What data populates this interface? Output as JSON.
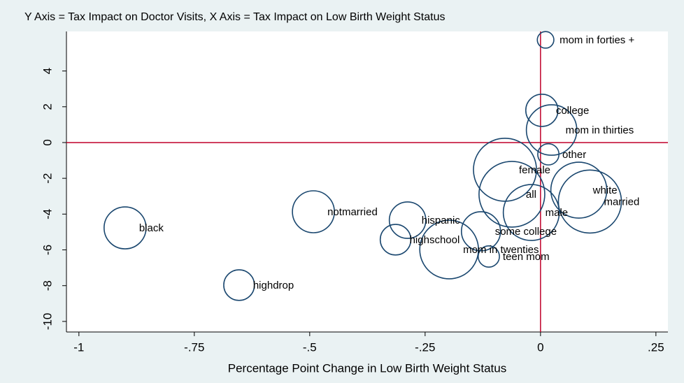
{
  "chart_data": {
    "type": "scatter",
    "title": "Y Axis = Tax Impact on Doctor Visits, X Axis = Tax Impact on Low Birth Weight Status",
    "x_label": "Percentage Point Change in Low Birth Weight Status",
    "xlim": [
      -1.027,
      0.276
    ],
    "ylim": [
      -10.59,
      6.21
    ],
    "xticks": [
      {
        "value": -1,
        "label": "-1"
      },
      {
        "value": -0.75,
        "label": "-.75"
      },
      {
        "value": -0.5,
        "label": "-.5"
      },
      {
        "value": -0.25,
        "label": "-.25"
      },
      0,
      {
        "value": 0.25,
        "label": ".25"
      }
    ],
    "yticks": [
      4,
      2,
      0,
      -2,
      -4,
      -6,
      -8,
      -10
    ],
    "xline": 0,
    "yline": 0,
    "series": [
      {
        "color": "#1a476f",
        "labels": [
          "mom in forties +",
          "college",
          "mom in thirties",
          "other",
          "female",
          "white",
          "married",
          "all",
          "male",
          "some college",
          "mom in twenties",
          "teen mom",
          "highschool",
          "hispanic",
          "notmarried",
          "black",
          "highdrop"
        ],
        "x": [
          0.011,
          0.003,
          0.024,
          0.017,
          -0.077,
          0.083,
          0.107,
          -0.062,
          -0.02,
          -0.129,
          -0.198,
          -0.112,
          -0.314,
          -0.288,
          -0.492,
          -0.9,
          -0.653
        ],
        "values": [
          5.74,
          1.8,
          0.7,
          -0.66,
          -1.52,
          -2.66,
          -3.3,
          -2.89,
          -3.91,
          -4.96,
          -5.98,
          -6.37,
          -5.43,
          -4.34,
          -3.87,
          -4.77,
          -7.97
        ],
        "sizes": [
          1.4,
          5.3,
          13.0,
          2.3,
          20.3,
          16.0,
          20.3,
          22.1,
          16.0,
          7.8,
          17.6,
          2.3,
          4.8,
          6.8,
          9.0,
          9.0,
          4.8
        ]
      }
    ]
  }
}
